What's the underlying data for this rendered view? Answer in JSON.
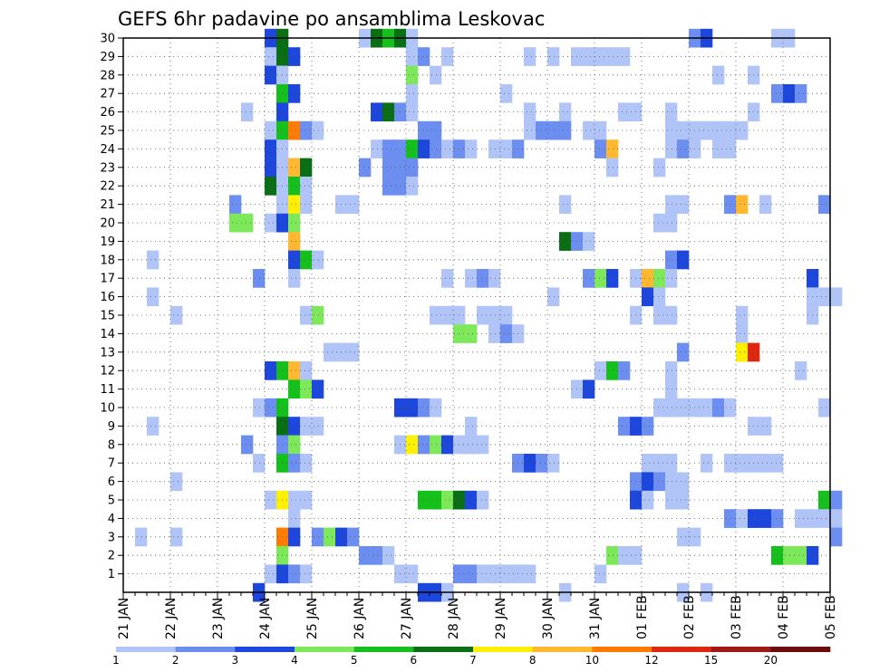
{
  "chart_data": {
    "type": "heatmap",
    "title": "GEFS 6hr padavine po ansamblima Leskovac",
    "x_tick_labels": [
      "21 JAN",
      "22 JAN",
      "23 JAN",
      "24 JAN",
      "25 JAN",
      "26 JAN",
      "27 JAN",
      "28 JAN",
      "29 JAN",
      "30 JAN",
      "31 JAN",
      "01 FEB",
      "02 FEB",
      "03 FEB",
      "04 FEB",
      "05 FEB"
    ],
    "x_steps_per_day": 4,
    "x_step_hours": 6,
    "y_range": [
      1,
      30
    ],
    "y_tick_labels": [
      "1",
      "2",
      "3",
      "4",
      "5",
      "6",
      "7",
      "8",
      "9",
      "10",
      "11",
      "12",
      "13",
      "14",
      "15",
      "16",
      "17",
      "18",
      "19",
      "20",
      "21",
      "22",
      "23",
      "24",
      "25",
      "26",
      "27",
      "28",
      "29",
      "30"
    ],
    "grid": true,
    "colorbar": {
      "levels": [
        "1",
        "2",
        "3",
        "4",
        "5",
        "6",
        "7",
        "8",
        "10",
        "12",
        "15",
        "20"
      ],
      "colors": [
        "#b0c4f8",
        "#6c8ef0",
        "#1c46dc",
        "#7de85a",
        "#16c01c",
        "#0a6e14",
        "#fff000",
        "#ffb830",
        "#ff7c00",
        "#e02810",
        "#a01818",
        "#6c0c0c"
      ]
    },
    "cells": [
      [
        12,
        30,
        3
      ],
      [
        13,
        30,
        6
      ],
      [
        20,
        30,
        1
      ],
      [
        21,
        30,
        6
      ],
      [
        22,
        30,
        5
      ],
      [
        23,
        30,
        6
      ],
      [
        24,
        30,
        1
      ],
      [
        48,
        30,
        2
      ],
      [
        49,
        30,
        3
      ],
      [
        55,
        30,
        1
      ],
      [
        56,
        30,
        1
      ],
      [
        12,
        29,
        1
      ],
      [
        13,
        29,
        6
      ],
      [
        14,
        29,
        3
      ],
      [
        24,
        29,
        1
      ],
      [
        25,
        29,
        2
      ],
      [
        27,
        29,
        1
      ],
      [
        34,
        29,
        1
      ],
      [
        36,
        29,
        1
      ],
      [
        38,
        29,
        1
      ],
      [
        39,
        29,
        1
      ],
      [
        40,
        29,
        1
      ],
      [
        41,
        29,
        1
      ],
      [
        42,
        29,
        1
      ],
      [
        12,
        28,
        3
      ],
      [
        13,
        28,
        1
      ],
      [
        24,
        28,
        4
      ],
      [
        26,
        28,
        1
      ],
      [
        50,
        28,
        1
      ],
      [
        53,
        28,
        1
      ],
      [
        13,
        27,
        5
      ],
      [
        14,
        27,
        3
      ],
      [
        24,
        27,
        1
      ],
      [
        32,
        27,
        1
      ],
      [
        55,
        27,
        2
      ],
      [
        56,
        27,
        3
      ],
      [
        57,
        27,
        2
      ],
      [
        10,
        26,
        1
      ],
      [
        13,
        26,
        3
      ],
      [
        21,
        26,
        3
      ],
      [
        22,
        26,
        6
      ],
      [
        23,
        26,
        2
      ],
      [
        24,
        26,
        1
      ],
      [
        34,
        26,
        1
      ],
      [
        37,
        26,
        1
      ],
      [
        42,
        26,
        1
      ],
      [
        43,
        26,
        1
      ],
      [
        46,
        26,
        1
      ],
      [
        53,
        26,
        1
      ],
      [
        12,
        25,
        1
      ],
      [
        13,
        25,
        5
      ],
      [
        14,
        25,
        9
      ],
      [
        15,
        25,
        2
      ],
      [
        16,
        25,
        1
      ],
      [
        25,
        25,
        2
      ],
      [
        26,
        25,
        2
      ],
      [
        34,
        25,
        1
      ],
      [
        35,
        25,
        2
      ],
      [
        36,
        25,
        2
      ],
      [
        37,
        25,
        2
      ],
      [
        39,
        25,
        1
      ],
      [
        40,
        25,
        1
      ],
      [
        46,
        25,
        1
      ],
      [
        47,
        25,
        1
      ],
      [
        48,
        25,
        1
      ],
      [
        49,
        25,
        1
      ],
      [
        50,
        25,
        1
      ],
      [
        51,
        25,
        1
      ],
      [
        52,
        25,
        1
      ],
      [
        12,
        24,
        3
      ],
      [
        13,
        24,
        1
      ],
      [
        21,
        24,
        1
      ],
      [
        22,
        24,
        2
      ],
      [
        23,
        24,
        2
      ],
      [
        24,
        24,
        5
      ],
      [
        25,
        24,
        3
      ],
      [
        26,
        24,
        2
      ],
      [
        27,
        24,
        1
      ],
      [
        28,
        24,
        2
      ],
      [
        29,
        24,
        1
      ],
      [
        31,
        24,
        1
      ],
      [
        32,
        24,
        1
      ],
      [
        33,
        24,
        2
      ],
      [
        40,
        24,
        2
      ],
      [
        41,
        24,
        8
      ],
      [
        46,
        24,
        1
      ],
      [
        47,
        24,
        2
      ],
      [
        48,
        24,
        1
      ],
      [
        50,
        24,
        1
      ],
      [
        51,
        24,
        1
      ],
      [
        12,
        23,
        3
      ],
      [
        13,
        23,
        1
      ],
      [
        14,
        23,
        8
      ],
      [
        15,
        23,
        6
      ],
      [
        20,
        23,
        2
      ],
      [
        22,
        23,
        2
      ],
      [
        23,
        23,
        2
      ],
      [
        24,
        23,
        2
      ],
      [
        41,
        23,
        1
      ],
      [
        45,
        23,
        1
      ],
      [
        12,
        22,
        6
      ],
      [
        13,
        22,
        1
      ],
      [
        14,
        22,
        5
      ],
      [
        15,
        22,
        1
      ],
      [
        22,
        22,
        2
      ],
      [
        23,
        22,
        2
      ],
      [
        24,
        22,
        1
      ],
      [
        9,
        21,
        2
      ],
      [
        13,
        21,
        1
      ],
      [
        14,
        21,
        7
      ],
      [
        15,
        21,
        1
      ],
      [
        18,
        21,
        1
      ],
      [
        19,
        21,
        1
      ],
      [
        37,
        21,
        1
      ],
      [
        46,
        21,
        1
      ],
      [
        47,
        21,
        1
      ],
      [
        51,
        21,
        2
      ],
      [
        52,
        21,
        8
      ],
      [
        54,
        21,
        1
      ],
      [
        59,
        21,
        2
      ],
      [
        9,
        20,
        4
      ],
      [
        10,
        20,
        4
      ],
      [
        12,
        20,
        1
      ],
      [
        13,
        20,
        3
      ],
      [
        14,
        20,
        4
      ],
      [
        45,
        20,
        1
      ],
      [
        46,
        20,
        1
      ],
      [
        14,
        19,
        8
      ],
      [
        37,
        19,
        6
      ],
      [
        38,
        19,
        2
      ],
      [
        39,
        19,
        1
      ],
      [
        2,
        18,
        1
      ],
      [
        14,
        18,
        3
      ],
      [
        15,
        18,
        5
      ],
      [
        16,
        18,
        1
      ],
      [
        46,
        18,
        2
      ],
      [
        47,
        18,
        3
      ],
      [
        11,
        17,
        2
      ],
      [
        14,
        17,
        1
      ],
      [
        27,
        17,
        1
      ],
      [
        29,
        17,
        1
      ],
      [
        30,
        17,
        2
      ],
      [
        31,
        17,
        1
      ],
      [
        39,
        17,
        2
      ],
      [
        40,
        17,
        4
      ],
      [
        41,
        17,
        3
      ],
      [
        43,
        17,
        1
      ],
      [
        44,
        17,
        8
      ],
      [
        45,
        17,
        4
      ],
      [
        46,
        17,
        1
      ],
      [
        58,
        17,
        3
      ],
      [
        2,
        16,
        1
      ],
      [
        36,
        16,
        1
      ],
      [
        44,
        16,
        3
      ],
      [
        45,
        16,
        1
      ],
      [
        58,
        16,
        1
      ],
      [
        59,
        16,
        1
      ],
      [
        60,
        16,
        1
      ],
      [
        4,
        15,
        1
      ],
      [
        15,
        15,
        1
      ],
      [
        16,
        15,
        4
      ],
      [
        26,
        15,
        1
      ],
      [
        27,
        15,
        1
      ],
      [
        28,
        15,
        1
      ],
      [
        30,
        15,
        1
      ],
      [
        31,
        15,
        1
      ],
      [
        32,
        15,
        1
      ],
      [
        43,
        15,
        1
      ],
      [
        45,
        15,
        1
      ],
      [
        46,
        15,
        1
      ],
      [
        52,
        15,
        1
      ],
      [
        58,
        15,
        1
      ],
      [
        28,
        14,
        4
      ],
      [
        29,
        14,
        4
      ],
      [
        31,
        14,
        1
      ],
      [
        32,
        14,
        2
      ],
      [
        33,
        14,
        1
      ],
      [
        52,
        14,
        1
      ],
      [
        17,
        13,
        1
      ],
      [
        18,
        13,
        1
      ],
      [
        19,
        13,
        1
      ],
      [
        47,
        13,
        2
      ],
      [
        52,
        13,
        7
      ],
      [
        53,
        13,
        10
      ],
      [
        12,
        12,
        3
      ],
      [
        13,
        12,
        5
      ],
      [
        14,
        12,
        8
      ],
      [
        15,
        12,
        1
      ],
      [
        40,
        12,
        1
      ],
      [
        41,
        12,
        5
      ],
      [
        42,
        12,
        2
      ],
      [
        46,
        12,
        1
      ],
      [
        57,
        12,
        1
      ],
      [
        14,
        11,
        5
      ],
      [
        15,
        11,
        4
      ],
      [
        16,
        11,
        3
      ],
      [
        38,
        11,
        1
      ],
      [
        39,
        11,
        3
      ],
      [
        46,
        11,
        1
      ],
      [
        11,
        10,
        1
      ],
      [
        12,
        10,
        2
      ],
      [
        13,
        10,
        5
      ],
      [
        23,
        10,
        3
      ],
      [
        24,
        10,
        3
      ],
      [
        25,
        10,
        2
      ],
      [
        26,
        10,
        1
      ],
      [
        45,
        10,
        1
      ],
      [
        46,
        10,
        1
      ],
      [
        47,
        10,
        1
      ],
      [
        48,
        10,
        1
      ],
      [
        49,
        10,
        1
      ],
      [
        50,
        10,
        2
      ],
      [
        51,
        10,
        1
      ],
      [
        59,
        10,
        1
      ],
      [
        2,
        9,
        1
      ],
      [
        13,
        9,
        6
      ],
      [
        14,
        9,
        3
      ],
      [
        15,
        9,
        1
      ],
      [
        16,
        9,
        1
      ],
      [
        29,
        9,
        1
      ],
      [
        42,
        9,
        2
      ],
      [
        43,
        9,
        3
      ],
      [
        44,
        9,
        2
      ],
      [
        53,
        9,
        1
      ],
      [
        54,
        9,
        1
      ],
      [
        10,
        8,
        2
      ],
      [
        13,
        8,
        2
      ],
      [
        14,
        8,
        4
      ],
      [
        23,
        8,
        1
      ],
      [
        24,
        8,
        7
      ],
      [
        25,
        8,
        2
      ],
      [
        26,
        8,
        4
      ],
      [
        27,
        8,
        3
      ],
      [
        28,
        8,
        1
      ],
      [
        29,
        8,
        1
      ],
      [
        30,
        8,
        1
      ],
      [
        11,
        7,
        1
      ],
      [
        13,
        7,
        5
      ],
      [
        14,
        7,
        2
      ],
      [
        15,
        7,
        1
      ],
      [
        33,
        7,
        2
      ],
      [
        34,
        7,
        3
      ],
      [
        35,
        7,
        2
      ],
      [
        36,
        7,
        1
      ],
      [
        44,
        7,
        1
      ],
      [
        45,
        7,
        1
      ],
      [
        46,
        7,
        1
      ],
      [
        49,
        7,
        1
      ],
      [
        51,
        7,
        1
      ],
      [
        52,
        7,
        1
      ],
      [
        53,
        7,
        1
      ],
      [
        54,
        7,
        1
      ],
      [
        55,
        7,
        1
      ],
      [
        4,
        6,
        1
      ],
      [
        43,
        6,
        2
      ],
      [
        44,
        6,
        3
      ],
      [
        45,
        6,
        2
      ],
      [
        46,
        6,
        1
      ],
      [
        47,
        6,
        1
      ],
      [
        12,
        5,
        1
      ],
      [
        13,
        5,
        7
      ],
      [
        14,
        5,
        1
      ],
      [
        15,
        5,
        1
      ],
      [
        25,
        5,
        5
      ],
      [
        26,
        5,
        5
      ],
      [
        27,
        5,
        4
      ],
      [
        28,
        5,
        6
      ],
      [
        29,
        5,
        3
      ],
      [
        30,
        5,
        1
      ],
      [
        43,
        5,
        3
      ],
      [
        44,
        5,
        1
      ],
      [
        46,
        5,
        1
      ],
      [
        47,
        5,
        1
      ],
      [
        59,
        5,
        5
      ],
      [
        60,
        5,
        2
      ],
      [
        14,
        4,
        1
      ],
      [
        51,
        4,
        2
      ],
      [
        52,
        4,
        1
      ],
      [
        53,
        4,
        3
      ],
      [
        54,
        4,
        3
      ],
      [
        55,
        4,
        2
      ],
      [
        57,
        4,
        1
      ],
      [
        58,
        4,
        1
      ],
      [
        59,
        4,
        1
      ],
      [
        60,
        4,
        1
      ],
      [
        1,
        3,
        1
      ],
      [
        4,
        3,
        1
      ],
      [
        13,
        3,
        9
      ],
      [
        14,
        3,
        3
      ],
      [
        16,
        3,
        2
      ],
      [
        17,
        3,
        4
      ],
      [
        18,
        3,
        3
      ],
      [
        19,
        3,
        2
      ],
      [
        47,
        3,
        1
      ],
      [
        48,
        3,
        1
      ],
      [
        60,
        3,
        2
      ],
      [
        13,
        2,
        4
      ],
      [
        20,
        2,
        2
      ],
      [
        21,
        2,
        2
      ],
      [
        22,
        2,
        1
      ],
      [
        41,
        2,
        4
      ],
      [
        42,
        2,
        1
      ],
      [
        43,
        2,
        1
      ],
      [
        55,
        2,
        5
      ],
      [
        56,
        2,
        4
      ],
      [
        57,
        2,
        4
      ],
      [
        58,
        2,
        3
      ],
      [
        12,
        1,
        1
      ],
      [
        13,
        1,
        3
      ],
      [
        14,
        1,
        2
      ],
      [
        15,
        1,
        1
      ],
      [
        23,
        1,
        1
      ],
      [
        24,
        1,
        1
      ],
      [
        28,
        1,
        2
      ],
      [
        29,
        1,
        2
      ],
      [
        30,
        1,
        1
      ],
      [
        31,
        1,
        1
      ],
      [
        32,
        1,
        1
      ],
      [
        33,
        1,
        1
      ],
      [
        34,
        1,
        1
      ],
      [
        40,
        1,
        1
      ],
      [
        11,
        0,
        3
      ],
      [
        25,
        0,
        3
      ],
      [
        26,
        0,
        3
      ],
      [
        27,
        0,
        1
      ],
      [
        37,
        0,
        1
      ],
      [
        47,
        0,
        1
      ],
      [
        49,
        0,
        1
      ]
    ]
  }
}
